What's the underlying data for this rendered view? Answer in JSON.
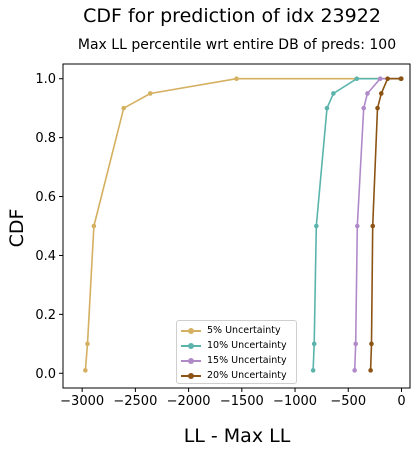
{
  "chart_data": {
    "type": "line",
    "title": "CDF for prediction of idx 23922",
    "subtitle": "Max LL percentile wrt entire DB of preds: 100",
    "xlabel": "LL - Max LL",
    "ylabel": "CDF",
    "xlim": [
      -3180,
      80
    ],
    "ylim": [
      -0.05,
      1.05
    ],
    "xticks": [
      -3000,
      -2500,
      -2000,
      -1500,
      -1000,
      -500,
      0
    ],
    "xtick_labels": [
      "−3000",
      "−2500",
      "−2000",
      "−1500",
      "−1000",
      "−500",
      "0"
    ],
    "yticks": [
      0.0,
      0.2,
      0.4,
      0.6,
      0.8,
      1.0
    ],
    "ytick_labels": [
      "0.0",
      "0.2",
      "0.4",
      "0.6",
      "0.8",
      "1.0"
    ],
    "grid": false,
    "legend_position": "lower-right-center",
    "series": [
      {
        "name": "5% Uncertainty",
        "color": "#d4b060",
        "x": [
          -2970,
          -2950,
          -2890,
          -2610,
          -2360,
          -1550,
          -10
        ],
        "y": [
          0.01,
          0.1,
          0.5,
          0.9,
          0.95,
          1.0,
          1.0
        ]
      },
      {
        "name": "10% Uncertainty",
        "color": "#5ab4ac",
        "x": [
          -830,
          -820,
          -800,
          -700,
          -640,
          -420,
          -5
        ],
        "y": [
          0.01,
          0.1,
          0.5,
          0.9,
          0.95,
          1.0,
          1.0
        ]
      },
      {
        "name": "15% Uncertainty",
        "color": "#b08ac8",
        "x": [
          -440,
          -430,
          -415,
          -355,
          -320,
          -200,
          -3
        ],
        "y": [
          0.01,
          0.1,
          0.5,
          0.9,
          0.95,
          1.0,
          1.0
        ]
      },
      {
        "name": "20% Uncertainty",
        "color": "#8b5314",
        "x": [
          -290,
          -282,
          -270,
          -225,
          -190,
          -130,
          -2
        ],
        "y": [
          0.01,
          0.1,
          0.5,
          0.9,
          0.95,
          1.0,
          1.0
        ]
      }
    ]
  }
}
